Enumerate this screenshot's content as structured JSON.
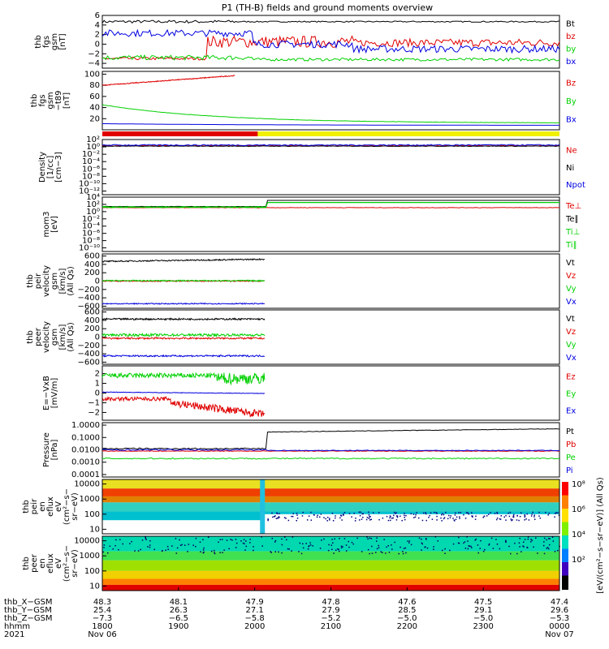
{
  "title": "P1 (TH-B) fields and ground moments overview",
  "colors": {
    "black": "#000000",
    "red": "#e00000",
    "green": "#00d000",
    "blue": "#0000e0",
    "yellow": "#f0f000"
  },
  "chart_data": [
    {
      "type": "line",
      "ylabel": [
        "thb",
        "fgs",
        "gsm",
        "[nT]"
      ],
      "yticks": [
        "6",
        "4",
        "2",
        "0",
        "−2",
        "−4"
      ],
      "ylim": [
        -5,
        6
      ],
      "series": [
        {
          "name": "Bt",
          "color": "black"
        },
        {
          "name": "bz",
          "color": "red"
        },
        {
          "name": "by",
          "color": "green"
        },
        {
          "name": "bx",
          "color": "blue"
        }
      ]
    },
    {
      "type": "line",
      "ylabel": [
        "thb",
        "fgs",
        "gsm",
        "−t89",
        "[nT]"
      ],
      "yticks": [
        "100",
        "80",
        "60",
        "40",
        "20"
      ],
      "ylim": [
        0,
        105
      ],
      "series": [
        {
          "name": "Bz",
          "color": "red"
        },
        {
          "name": "By",
          "color": "green"
        },
        {
          "name": "Bx",
          "color": "blue"
        }
      ]
    },
    {
      "type": "line",
      "ylabel": [
        "Density",
        "[1/cc]",
        "[cm−3]"
      ],
      "yticks": [
        "10²",
        "10⁰",
        "10⁻²",
        "10⁻⁴",
        "10⁻⁶",
        "10⁻⁸",
        "10⁻¹⁰",
        "10⁻¹²"
      ],
      "ylim": [
        -13,
        2
      ],
      "log": true,
      "series": [
        {
          "name": "Ne",
          "color": "red"
        },
        {
          "name": "Ni",
          "color": "black"
        },
        {
          "name": "Npot",
          "color": "blue"
        }
      ]
    },
    {
      "type": "line",
      "ylabel": [
        "mom3",
        "[eV]"
      ],
      "yticks": [
        "10⁴",
        "10²",
        "10⁰",
        "10⁻²",
        "10⁻⁴",
        "10⁻⁶",
        "10⁻⁸",
        "10⁻¹⁰"
      ],
      "ylim": [
        -11,
        4
      ],
      "log": true,
      "series": [
        {
          "name": "Te⊥",
          "color": "red"
        },
        {
          "name": "Te∥",
          "color": "black"
        },
        {
          "name": "Ti⊥",
          "color": "green"
        },
        {
          "name": "Ti∥",
          "color": "green"
        }
      ]
    },
    {
      "type": "line",
      "ylabel": [
        "thb",
        "peir",
        "velocity",
        "gsm",
        "[km/s]",
        "(All Qs)"
      ],
      "yticks": [
        "600",
        "400",
        "200",
        "0",
        "−200",
        "−400",
        "−600"
      ],
      "ylim": [
        -650,
        650
      ],
      "series": [
        {
          "name": "Vt",
          "color": "black"
        },
        {
          "name": "Vz",
          "color": "red"
        },
        {
          "name": "Vy",
          "color": "green"
        },
        {
          "name": "Vx",
          "color": "blue"
        }
      ]
    },
    {
      "type": "line",
      "ylabel": [
        "thb",
        "peer",
        "velocity",
        "gsm",
        "[km/s]",
        "(All Qs)"
      ],
      "yticks": [
        "600",
        "400",
        "200",
        "0",
        "−200",
        "−400",
        "−600"
      ],
      "ylim": [
        -650,
        650
      ],
      "series": [
        {
          "name": "Vt",
          "color": "black"
        },
        {
          "name": "Vz",
          "color": "red"
        },
        {
          "name": "Vy",
          "color": "green"
        },
        {
          "name": "Vx",
          "color": "blue"
        }
      ]
    },
    {
      "type": "line",
      "ylabel": [
        "E=−VxB",
        "[mV/m]"
      ],
      "yticks": [
        "2",
        "1",
        "0",
        "−1",
        "−2"
      ],
      "ylim": [
        -2.8,
        2.8
      ],
      "series": [
        {
          "name": "Ez",
          "color": "red"
        },
        {
          "name": "Ey",
          "color": "green"
        },
        {
          "name": "Ex",
          "color": "blue"
        }
      ]
    },
    {
      "type": "line",
      "ylabel": [
        "Pressure",
        "[nPa]"
      ],
      "yticks": [
        "1.0000",
        "0.1000",
        "0.0100",
        "0.0010",
        "0.0001"
      ],
      "ylim": [
        -4.2,
        0.2
      ],
      "log": true,
      "series": [
        {
          "name": "Pt",
          "color": "black"
        },
        {
          "name": "Pb",
          "color": "red"
        },
        {
          "name": "Pe",
          "color": "green"
        },
        {
          "name": "Pi",
          "color": "blue"
        }
      ]
    },
    {
      "type": "heatmap",
      "ylabel": [
        "thb",
        "peir",
        "en",
        "eflux",
        "eV",
        "(cm²−s−",
        "sr−eV)"
      ],
      "yticks": [
        "10000",
        "1000",
        "100",
        "10"
      ]
    },
    {
      "type": "heatmap",
      "ylabel": [
        "thb",
        "peer",
        "en",
        "eflux",
        "eV",
        "(cm²−s−",
        "sr−eV)"
      ],
      "yticks": [
        "10000",
        "1000",
        "100",
        "10"
      ]
    }
  ],
  "colorbar": {
    "ticks": [
      "10⁸",
      "10⁶",
      "10⁴",
      "10²"
    ],
    "label": "[eV/(cm²−s−sr−eV)] (All Qs)"
  },
  "state_bar": [
    "red",
    "yellow"
  ],
  "xaxis": {
    "row_labels": [
      "thb_X−GSM",
      "thb_Y−GSM",
      "thb_Z−GSM",
      "hhmm",
      "2021"
    ],
    "columns": [
      {
        "vals": [
          "48.3",
          "25.4",
          "−7.3",
          "1800",
          "Nov 06"
        ]
      },
      {
        "vals": [
          "48.1",
          "26.3",
          "−6.5",
          "1900",
          ""
        ]
      },
      {
        "vals": [
          "47.9",
          "27.1",
          "−5.8",
          "2000",
          ""
        ]
      },
      {
        "vals": [
          "47.8",
          "27.9",
          "−5.2",
          "2100",
          ""
        ]
      },
      {
        "vals": [
          "47.6",
          "28.5",
          "−5.0",
          "2200",
          ""
        ]
      },
      {
        "vals": [
          "47.5",
          "29.1",
          "−5.0",
          "2300",
          ""
        ]
      },
      {
        "vals": [
          "47.4",
          "29.6",
          "−5.3",
          "0000",
          "Nov 07"
        ]
      }
    ]
  }
}
